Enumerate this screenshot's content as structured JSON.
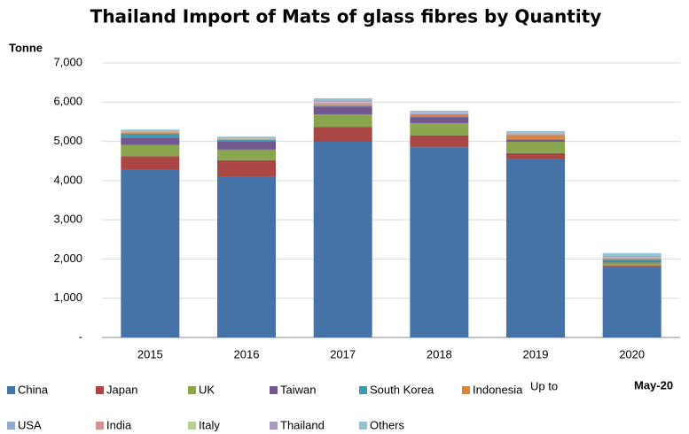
{
  "chart_data": {
    "type": "stacked_bar",
    "title": "Thailand Import of Mats of glass fibres by Quantity",
    "y_label": "Tonne",
    "annotation": {
      "prefix": "Up to",
      "period": "May-20"
    },
    "categories": [
      "2015",
      "2016",
      "2017",
      "2018",
      "2019",
      "2020"
    ],
    "series": [
      {
        "name": "China",
        "color": "#4572a7",
        "values": [
          4280,
          4090,
          4990,
          4850,
          4540,
          1810
        ]
      },
      {
        "name": "Japan",
        "color": "#aa4643",
        "values": [
          340,
          430,
          380,
          300,
          160,
          20
        ]
      },
      {
        "name": "UK",
        "color": "#89a54e",
        "values": [
          290,
          270,
          320,
          310,
          290,
          80
        ]
      },
      {
        "name": "Taiwan",
        "color": "#71588f",
        "values": [
          180,
          200,
          200,
          160,
          50,
          30
        ]
      },
      {
        "name": "South Korea",
        "color": "#4198af",
        "values": [
          110,
          50,
          20,
          20,
          20,
          50
        ]
      },
      {
        "name": "Indonesia",
        "color": "#db843d",
        "values": [
          20,
          10,
          20,
          50,
          100,
          10
        ]
      },
      {
        "name": "USA",
        "color": "#93a9cf",
        "values": [
          20,
          10,
          40,
          20,
          20,
          20
        ]
      },
      {
        "name": "India",
        "color": "#d19392",
        "values": [
          10,
          10,
          20,
          10,
          10,
          10
        ]
      },
      {
        "name": "Italy",
        "color": "#b9cd96",
        "values": [
          10,
          10,
          20,
          10,
          10,
          10
        ]
      },
      {
        "name": "Thailand",
        "color": "#a99bbd",
        "values": [
          10,
          10,
          30,
          20,
          20,
          30
        ]
      },
      {
        "name": "Others",
        "color": "#92c3d5",
        "values": [
          30,
          30,
          60,
          30,
          40,
          80
        ]
      }
    ],
    "ylim": [
      0,
      7000
    ],
    "yticks": [
      {
        "value": 0,
        "label": "-"
      },
      {
        "value": 1000,
        "label": "1,000"
      },
      {
        "value": 2000,
        "label": "2,000"
      },
      {
        "value": 3000,
        "label": "3,000"
      },
      {
        "value": 4000,
        "label": "4,000"
      },
      {
        "value": 5000,
        "label": "5,000"
      },
      {
        "value": 6000,
        "label": "6,000"
      },
      {
        "value": 7000,
        "label": "7,000"
      }
    ],
    "grid": true
  }
}
